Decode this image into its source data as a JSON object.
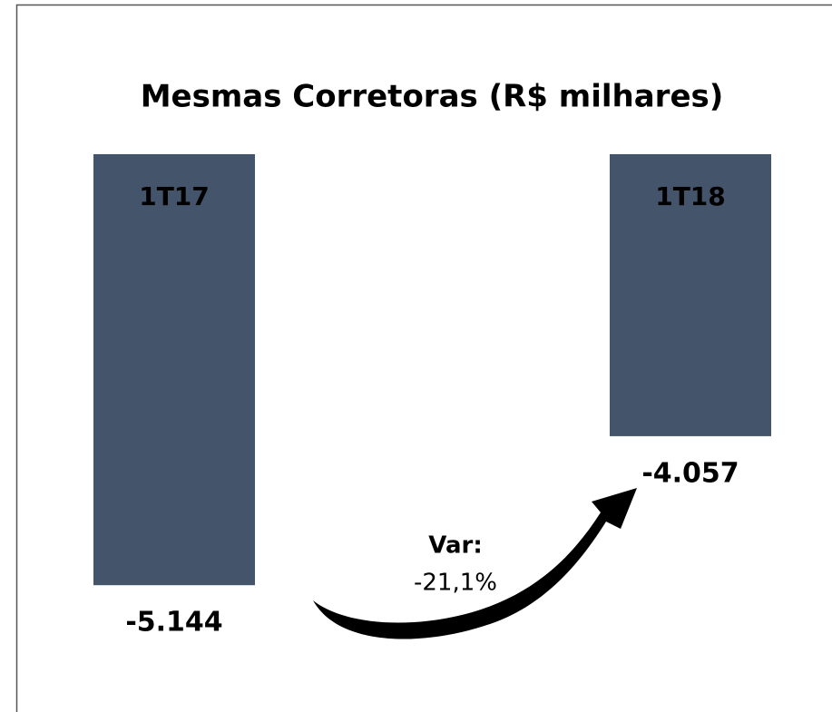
{
  "chart_data": {
    "type": "bar",
    "title": "Mesmas Corretoras (R$ milhares)",
    "categories": [
      "1T17",
      "1T18"
    ],
    "values": [
      -5144,
      -4057
    ],
    "value_labels": [
      "-5.144",
      "-4.057"
    ],
    "color": "#44546a",
    "ylim": [
      -5500,
      -2000
    ],
    "annotation": {
      "label": "Var:",
      "text": "-21,1%"
    }
  }
}
